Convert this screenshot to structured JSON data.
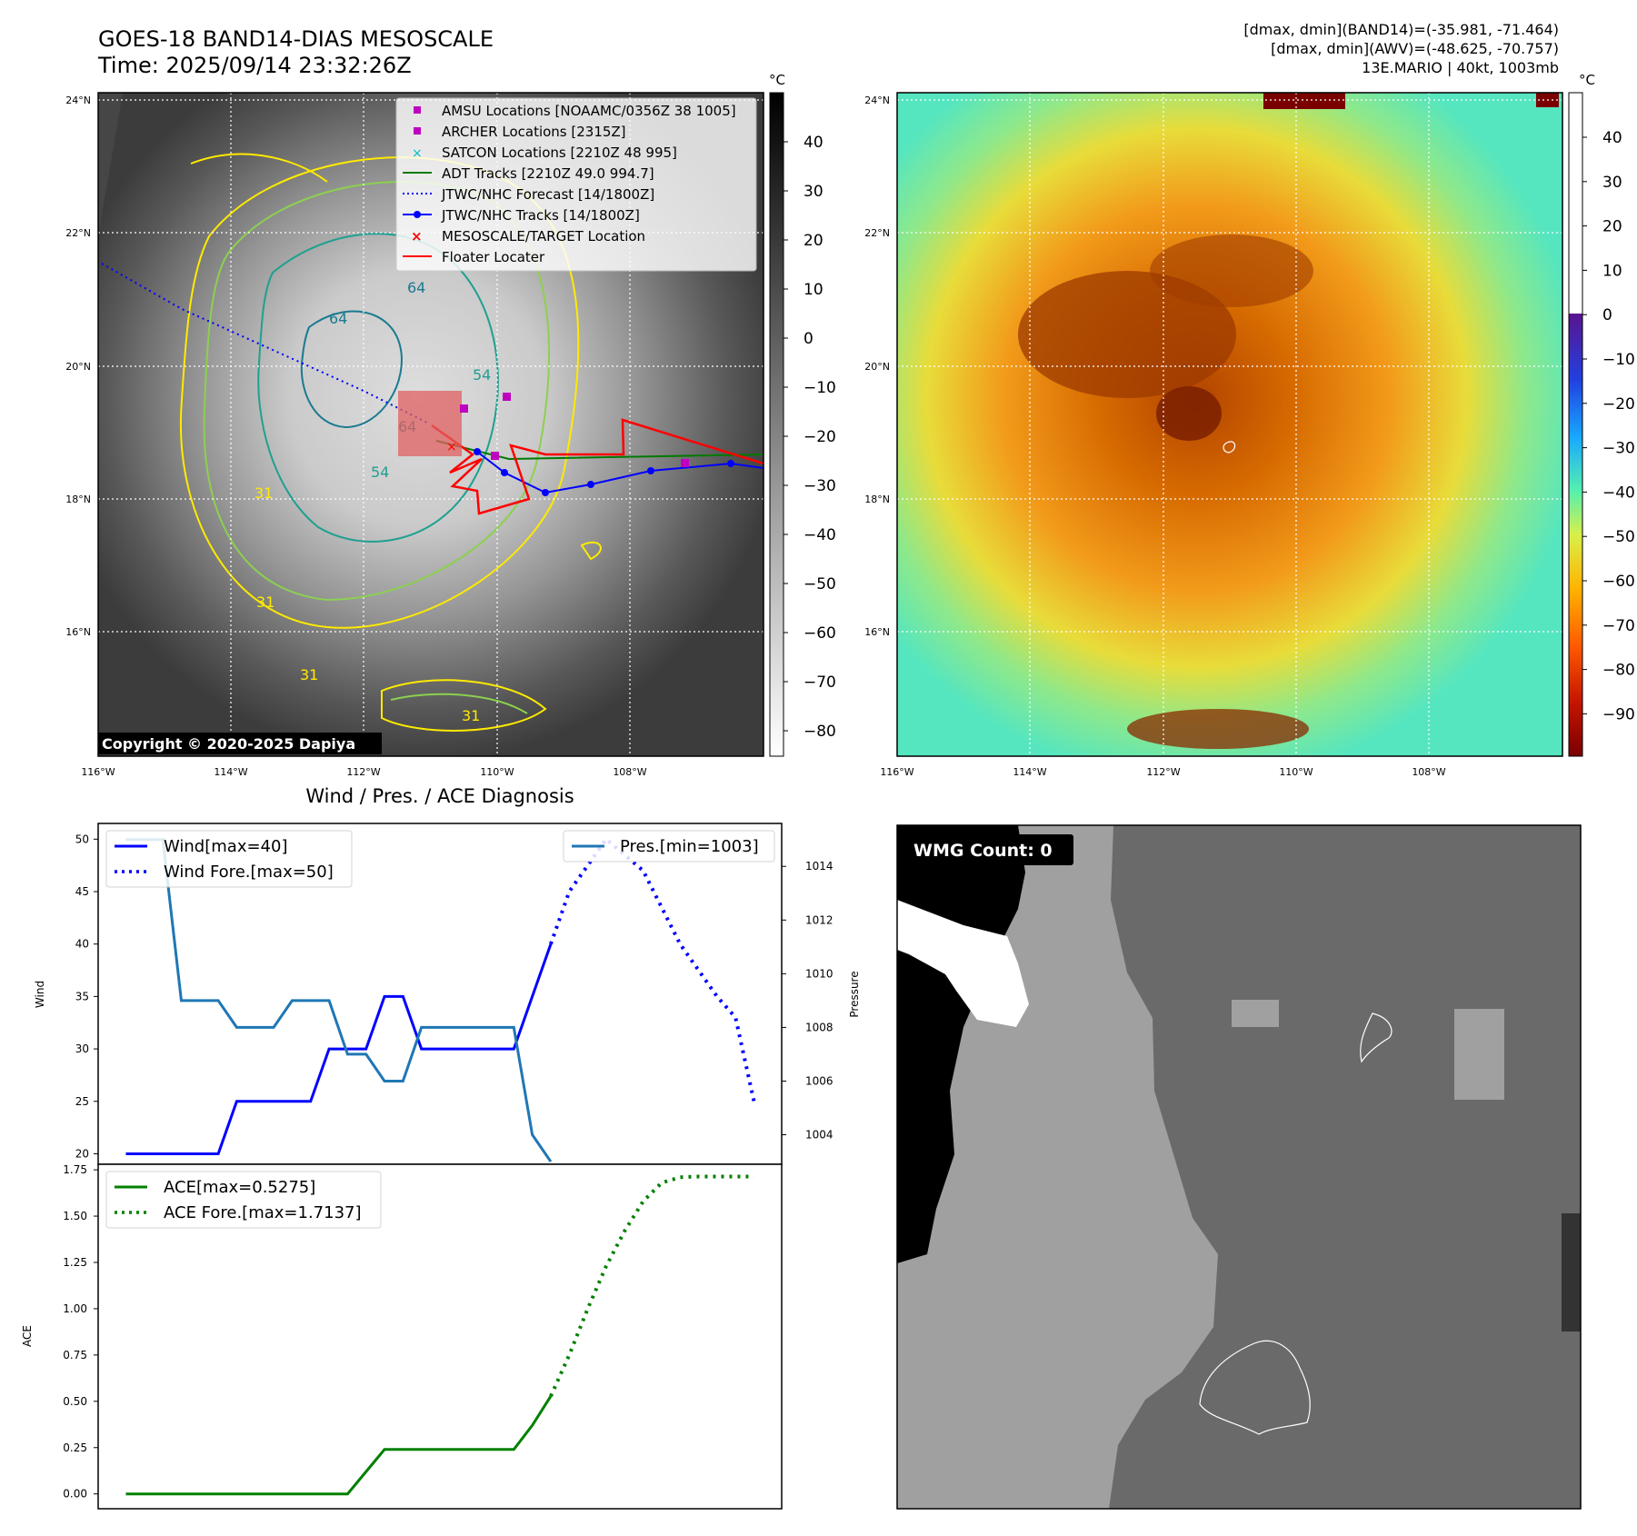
{
  "header": {
    "title_line1": "GOES-18 BAND14-DIAS MESOSCALE",
    "title_line2": "Time: 2025/09/14 23:32:26Z",
    "info_line1": "[dmax, dmin](BAND14)=(-35.981, -71.464)",
    "info_line2": "[dmax, dmin](AWV)=(-48.625, -70.757)",
    "info_line3": "13E.MARIO | 40kt, 1003mb"
  },
  "maps": {
    "lat_labels": [
      "24°N",
      "22°N",
      "20°N",
      "18°N",
      "16°N"
    ],
    "lon_labels": [
      "116°W",
      "114°W",
      "112°W",
      "110°W",
      "108°W"
    ],
    "colorbar_unit": "°C",
    "left_colorbar_ticks": [
      "40",
      "30",
      "20",
      "10",
      "0",
      "−10",
      "−20",
      "−30",
      "−40",
      "−50",
      "−60",
      "−70",
      "−80"
    ],
    "right_colorbar_ticks": [
      "40",
      "30",
      "20",
      "10",
      "0",
      "−10",
      "−20",
      "−30",
      "−40",
      "−50",
      "−60",
      "−70",
      "−80",
      "−90"
    ],
    "copyright": "Copyright © 2020-2025 Dapiya",
    "contour_labels": [
      "64",
      "64",
      "64",
      "54",
      "54",
      "31",
      "31",
      "31",
      "31"
    ],
    "legend": [
      "AMSU Locations [NOAAMC/0356Z 38 1005]",
      "ARCHER Locations [2315Z]",
      "SATCON Locations [2210Z 48 995]",
      "ADT Tracks [2210Z 49.0 994.7]",
      "JTWC/NHC Forecast [14/1800Z]",
      "JTWC/NHC Tracks [14/1800Z]",
      "MESOSCALE/TARGET Location",
      "Floater Locater"
    ],
    "colors": {
      "amsu": "#c000c0",
      "archer": "#c000c0",
      "satcon": "#00bfbf",
      "adt": "#007a00",
      "forecast": "#0000ff",
      "track": "#0000ff",
      "target": "#ff0000",
      "floater": "#ff0000"
    }
  },
  "diagnosis": {
    "title": "Wind / Pres. / ACE Diagnosis",
    "wind_ylabel": "Wind",
    "pres_ylabel": "Pressure",
    "ace_ylabel": "ACE",
    "wind_legend": [
      "Wind[max=40]",
      "Wind Fore.[max=50]"
    ],
    "pres_legend": [
      "Pres.[min=1003]"
    ],
    "ace_legend": [
      "ACE[max=0.5275]",
      "ACE Fore.[max=1.7137]"
    ]
  },
  "wmg": {
    "label": "WMG Count: 0"
  },
  "chart_data": [
    {
      "type": "line",
      "name": "wind",
      "ylim": [
        19,
        51.5
      ],
      "yticks": [
        20,
        25,
        30,
        35,
        40,
        45,
        50
      ],
      "x": [
        0,
        1,
        2,
        3,
        4,
        5,
        6,
        7,
        8,
        9,
        10,
        11,
        12,
        13,
        14,
        15,
        16,
        17,
        18,
        19,
        20,
        21,
        22,
        23
      ],
      "series": [
        {
          "name": "Wind[max=40]",
          "x": [
            0,
            1,
            2,
            3,
            4,
            5,
            6,
            7,
            8,
            9,
            10,
            11,
            12,
            13,
            14,
            15,
            16,
            17,
            18,
            19,
            20,
            21,
            22,
            23
          ],
          "values": [
            20,
            20,
            20,
            20,
            20,
            20,
            25,
            25,
            25,
            25,
            25,
            30,
            30,
            30,
            35,
            35,
            30,
            30,
            30,
            30,
            30,
            30,
            35,
            40
          ],
          "color": "#0000ff",
          "style": "solid"
        },
        {
          "name": "Wind Fore.[max=50]",
          "x": [
            23,
            24,
            26,
            28,
            30,
            32,
            33,
            34
          ],
          "values": [
            40,
            45,
            50,
            47,
            40,
            35,
            33,
            25
          ],
          "color": "#0000ff",
          "style": "dotted"
        },
        {
          "name": "Pres.[min=1003]",
          "axis": "right",
          "x": [
            0,
            1,
            2,
            3,
            4,
            5,
            6,
            7,
            8,
            9,
            10,
            11,
            12,
            13,
            14,
            15,
            16,
            17,
            18,
            19,
            20,
            21,
            22,
            23
          ],
          "values": [
            1015,
            1015,
            1015,
            1009,
            1009,
            1009,
            1008,
            1008,
            1008,
            1009,
            1009,
            1009,
            1007,
            1007,
            1006,
            1006,
            1008,
            1008,
            1008,
            1008,
            1008,
            1008,
            1004,
            1003
          ],
          "color": "#1f77b4",
          "style": "solid"
        }
      ],
      "pres_ylim": [
        1002.9,
        1015.6
      ],
      "pres_yticks": [
        1004,
        1006,
        1008,
        1010,
        1012,
        1014
      ]
    },
    {
      "type": "line",
      "name": "ace",
      "ylim": [
        -0.08,
        1.78
      ],
      "yticks": [
        0.0,
        0.25,
        0.5,
        0.75,
        1.0,
        1.25,
        1.5,
        1.75
      ],
      "ytick_labels": [
        "0.00",
        "0.25",
        "0.50",
        "0.75",
        "1.00",
        "1.25",
        "1.50",
        "1.75"
      ],
      "series": [
        {
          "name": "ACE[max=0.5275]",
          "x": [
            0,
            1,
            2,
            3,
            4,
            5,
            6,
            7,
            8,
            9,
            10,
            11,
            12,
            13,
            14,
            15,
            16,
            17,
            18,
            19,
            20,
            21,
            22,
            23
          ],
          "values": [
            0,
            0,
            0,
            0,
            0,
            0,
            0,
            0,
            0,
            0,
            0,
            0,
            0,
            0.12,
            0.24,
            0.24,
            0.24,
            0.24,
            0.24,
            0.24,
            0.24,
            0.24,
            0.37,
            0.5275
          ],
          "color": "#008000",
          "style": "solid"
        },
        {
          "name": "ACE Fore.[max=1.7137]",
          "x": [
            23,
            24,
            25,
            26,
            27,
            28,
            29,
            30,
            31,
            32,
            33,
            34
          ],
          "values": [
            0.5275,
            0.75,
            1.0,
            1.23,
            1.42,
            1.58,
            1.68,
            1.71,
            1.7137,
            1.7137,
            1.7137,
            1.7137
          ],
          "color": "#008000",
          "style": "dotted"
        }
      ]
    }
  ]
}
